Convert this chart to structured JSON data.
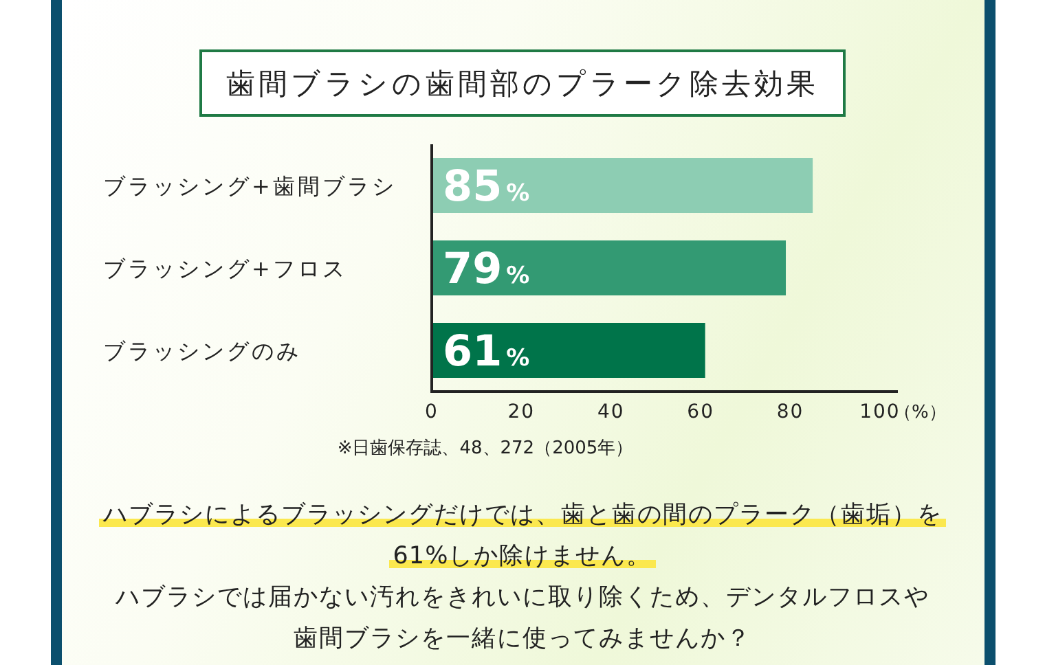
{
  "chart_data": {
    "type": "bar",
    "orientation": "horizontal",
    "title": "歯間ブラシの歯間部のプラーク除去効果",
    "xlabel": "（%）",
    "categories": [
      "ブラッシング+歯間ブラシ",
      "ブラッシング+フロス",
      "ブラッシングのみ"
    ],
    "values": [
      85,
      79,
      61
    ],
    "colors": [
      "#8dcdb3",
      "#339a73",
      "#00744a"
    ],
    "value_labels": [
      "85%",
      "79%",
      "61%"
    ],
    "xlim": [
      0,
      104
    ],
    "xticks": [
      0,
      20,
      40,
      60,
      80,
      100
    ],
    "annotations": [
      "※日歯保存誌、48、272（2005年）",
      "ハブラシによるブラッシングだけでは、歯と歯の間のプラーク（歯垢）を",
      "61%しか除けません。",
      "ハブラシでは届かない汚れをきれいに取り除くため、デンタルフロスや",
      "歯間ブラシを一緒に使ってみませんか？"
    ]
  }
}
